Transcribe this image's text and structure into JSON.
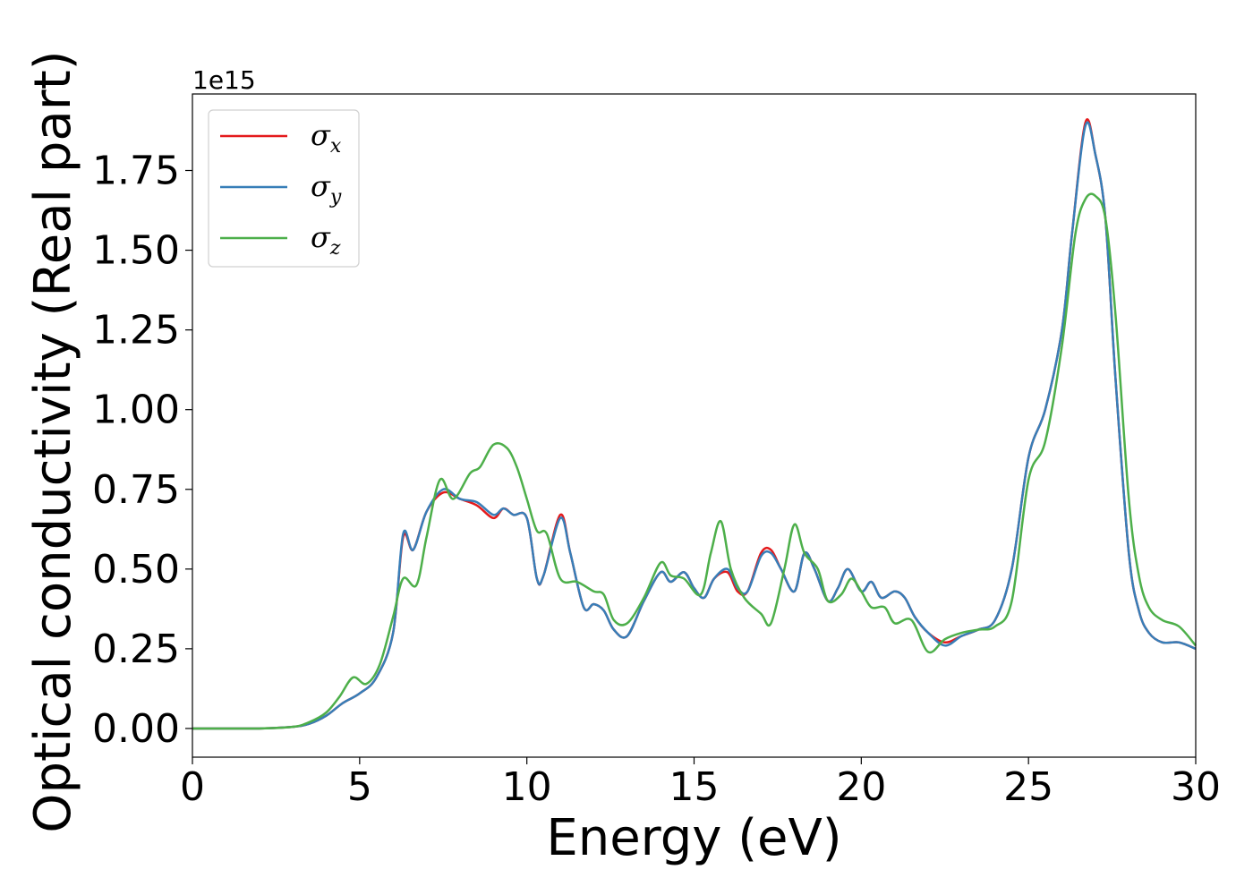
{
  "chart_data": {
    "type": "line",
    "title": "",
    "xlabel": "Energy (eV)",
    "ylabel": "Optical conductivity (Real part)",
    "y_offset_text": "1e15",
    "xlim": [
      0,
      30
    ],
    "ylim": [
      -0.09,
      1.99
    ],
    "xticks": [
      0,
      5,
      10,
      15,
      20,
      25,
      30
    ],
    "xtick_labels": [
      "0",
      "5",
      "10",
      "15",
      "20",
      "25",
      "30"
    ],
    "yticks": [
      0.0,
      0.25,
      0.5,
      0.75,
      1.0,
      1.25,
      1.5,
      1.75
    ],
    "ytick_labels": [
      "0.00",
      "0.25",
      "0.50",
      "0.75",
      "1.00",
      "1.25",
      "1.50",
      "1.75"
    ],
    "grid": false,
    "legend_position": "upper-left",
    "series": [
      {
        "name": "σ",
        "subscript": "x",
        "color": "#e41a1c",
        "x": [
          0,
          1,
          2,
          3,
          3.5,
          4,
          4.5,
          5,
          5.5,
          6,
          6.3,
          6.6,
          7,
          7.5,
          8,
          8.5,
          9,
          9.3,
          9.6,
          10,
          10.3,
          10.5,
          11,
          11.3,
          11.7,
          12,
          12.3,
          12.6,
          13,
          13.5,
          14,
          14.3,
          14.7,
          15,
          15.3,
          15.6,
          16,
          16.3,
          16.6,
          17,
          17.3,
          17.6,
          18,
          18.3,
          18.6,
          19,
          19.3,
          19.6,
          20,
          20.3,
          20.6,
          21,
          21.3,
          21.6,
          22,
          22.5,
          23,
          23.5,
          24,
          24.5,
          25,
          25.5,
          26,
          26.3,
          26.7,
          27,
          27.3,
          27.6,
          28,
          28.3,
          28.6,
          29,
          29.5,
          30
        ],
        "y": [
          0,
          0,
          0,
          0.005,
          0.015,
          0.04,
          0.08,
          0.11,
          0.16,
          0.3,
          0.6,
          0.56,
          0.68,
          0.74,
          0.72,
          0.7,
          0.66,
          0.69,
          0.67,
          0.66,
          0.47,
          0.48,
          0.67,
          0.55,
          0.38,
          0.39,
          0.37,
          0.31,
          0.29,
          0.4,
          0.49,
          0.46,
          0.49,
          0.44,
          0.41,
          0.47,
          0.49,
          0.43,
          0.43,
          0.55,
          0.56,
          0.5,
          0.43,
          0.55,
          0.5,
          0.4,
          0.44,
          0.5,
          0.43,
          0.46,
          0.41,
          0.43,
          0.41,
          0.35,
          0.3,
          0.27,
          0.29,
          0.31,
          0.34,
          0.5,
          0.85,
          1.0,
          1.25,
          1.55,
          1.9,
          1.8,
          1.6,
          1.1,
          0.55,
          0.37,
          0.3,
          0.27,
          0.27,
          0.25
        ]
      },
      {
        "name": "σ",
        "subscript": "y",
        "color": "#377eb8",
        "x": [
          0,
          1,
          2,
          3,
          3.5,
          4,
          4.5,
          5,
          5.5,
          6,
          6.3,
          6.6,
          7,
          7.5,
          8,
          8.5,
          9,
          9.3,
          9.6,
          10,
          10.3,
          10.5,
          11,
          11.3,
          11.7,
          12,
          12.3,
          12.6,
          13,
          13.5,
          14,
          14.3,
          14.7,
          15,
          15.3,
          15.6,
          16,
          16.3,
          16.6,
          17,
          17.3,
          17.6,
          18,
          18.3,
          18.6,
          19,
          19.3,
          19.6,
          20,
          20.3,
          20.6,
          21,
          21.3,
          21.6,
          22,
          22.5,
          23,
          23.5,
          24,
          24.5,
          25,
          25.5,
          26,
          26.3,
          26.7,
          27,
          27.3,
          27.6,
          28,
          28.3,
          28.6,
          29,
          29.5,
          30
        ],
        "y": [
          0,
          0,
          0,
          0.005,
          0.015,
          0.04,
          0.08,
          0.11,
          0.16,
          0.3,
          0.61,
          0.56,
          0.68,
          0.75,
          0.72,
          0.71,
          0.67,
          0.69,
          0.67,
          0.66,
          0.47,
          0.48,
          0.66,
          0.55,
          0.38,
          0.39,
          0.37,
          0.31,
          0.29,
          0.4,
          0.49,
          0.46,
          0.49,
          0.44,
          0.41,
          0.47,
          0.5,
          0.44,
          0.43,
          0.54,
          0.55,
          0.5,
          0.43,
          0.55,
          0.5,
          0.4,
          0.44,
          0.5,
          0.43,
          0.46,
          0.41,
          0.43,
          0.41,
          0.35,
          0.3,
          0.26,
          0.29,
          0.31,
          0.34,
          0.5,
          0.85,
          1.0,
          1.25,
          1.55,
          1.89,
          1.8,
          1.6,
          1.1,
          0.55,
          0.37,
          0.3,
          0.27,
          0.27,
          0.25
        ]
      },
      {
        "name": "σ",
        "subscript": "z",
        "color": "#4daf4a",
        "x": [
          0,
          1,
          2,
          3,
          3.5,
          4,
          4.4,
          4.8,
          5.2,
          5.6,
          6,
          6.3,
          6.7,
          7,
          7.4,
          7.8,
          8.3,
          8.6,
          9,
          9.4,
          9.7,
          10,
          10.3,
          10.6,
          11,
          11.5,
          12,
          12.3,
          12.6,
          13,
          13.5,
          14,
          14.3,
          14.7,
          15.2,
          15.5,
          15.8,
          16.1,
          16.5,
          17,
          17.3,
          17.7,
          18,
          18.3,
          18.7,
          19,
          19.4,
          19.7,
          20,
          20.3,
          20.7,
          21,
          21.5,
          22,
          22.5,
          23,
          23.5,
          24,
          24.5,
          25,
          25.5,
          26,
          26.4,
          26.7,
          27,
          27.3,
          27.6,
          28,
          28.3,
          28.6,
          29,
          29.5,
          30
        ],
        "y": [
          0,
          0,
          0,
          0.005,
          0.02,
          0.05,
          0.1,
          0.16,
          0.14,
          0.2,
          0.35,
          0.47,
          0.45,
          0.6,
          0.78,
          0.72,
          0.8,
          0.82,
          0.89,
          0.88,
          0.82,
          0.72,
          0.62,
          0.61,
          0.47,
          0.46,
          0.43,
          0.42,
          0.34,
          0.33,
          0.41,
          0.52,
          0.48,
          0.47,
          0.42,
          0.55,
          0.65,
          0.5,
          0.41,
          0.36,
          0.33,
          0.5,
          0.64,
          0.55,
          0.5,
          0.4,
          0.42,
          0.47,
          0.43,
          0.38,
          0.38,
          0.33,
          0.34,
          0.24,
          0.28,
          0.3,
          0.31,
          0.32,
          0.4,
          0.78,
          0.9,
          1.2,
          1.55,
          1.66,
          1.67,
          1.6,
          1.3,
          0.72,
          0.48,
          0.38,
          0.34,
          0.32,
          0.26
        ]
      }
    ]
  }
}
